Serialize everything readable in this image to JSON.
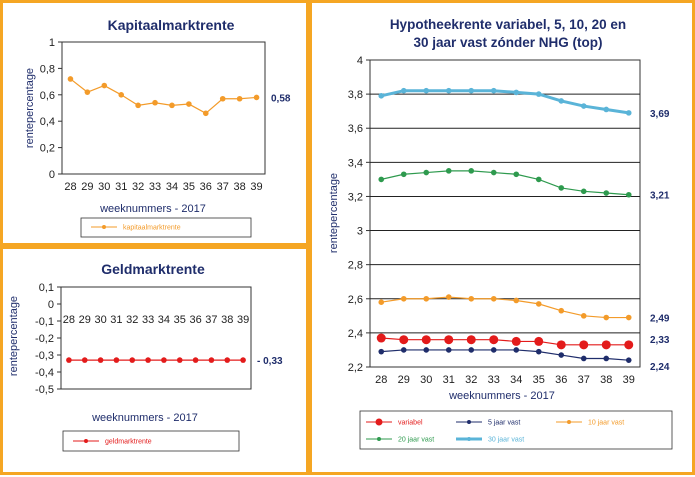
{
  "chart_data": [
    {
      "id": "kap",
      "type": "line",
      "title": "Kapitaalmarktrente",
      "xlabel": "weeknummers - 2017",
      "ylabel": "rentepercentage",
      "categories": [
        "28",
        "29",
        "30",
        "31",
        "32",
        "33",
        "34",
        "35",
        "36",
        "37",
        "38",
        "39"
      ],
      "ylim": [
        0,
        1
      ],
      "yticks": [
        "0",
        "0,2",
        "0,4",
        "0,6",
        "0,8",
        "1"
      ],
      "series": [
        {
          "name": "kapitaalmarktrente",
          "color": "#F39B2A",
          "marker": "circle",
          "values": [
            0.72,
            0.62,
            0.67,
            0.6,
            0.52,
            0.54,
            0.52,
            0.53,
            0.46,
            0.57,
            0.57,
            0.58
          ],
          "end_label": "0,58"
        }
      ],
      "grid": false,
      "legend_position": "bottom"
    },
    {
      "id": "geld",
      "type": "line",
      "title": "Geldmarktrente",
      "xlabel": "weeknummers - 2017",
      "ylabel": "rentepercentage",
      "categories": [
        "28",
        "29",
        "30",
        "31",
        "32",
        "33",
        "34",
        "35",
        "36",
        "37",
        "38",
        "39"
      ],
      "ylim": [
        -0.5,
        0.1
      ],
      "yticks": [
        "-0,5",
        "-0,4",
        "-0,3",
        "-0,2",
        "-0,1",
        "0",
        "0,1"
      ],
      "series": [
        {
          "name": "geldmarktrente",
          "color": "#E31B1B",
          "marker": "circle",
          "values": [
            -0.33,
            -0.33,
            -0.33,
            -0.33,
            -0.33,
            -0.33,
            -0.33,
            -0.33,
            -0.33,
            -0.33,
            -0.33,
            -0.33
          ],
          "end_label": "- 0,33"
        }
      ],
      "grid": false,
      "legend_position": "bottom"
    },
    {
      "id": "hyp",
      "type": "line",
      "title": "Hypotheekrente variabel, 5, 10, 20 en",
      "title_line2": "30 jaar vast zónder NHG (top)",
      "xlabel": "weeknummers - 2017",
      "ylabel": "rentepercentage",
      "categories": [
        "28",
        "29",
        "30",
        "31",
        "32",
        "33",
        "34",
        "35",
        "36",
        "37",
        "38",
        "39"
      ],
      "ylim": [
        2.2,
        4
      ],
      "yticks": [
        "2,2",
        "2,4",
        "2,6",
        "2,8",
        "3",
        "3,2",
        "3,4",
        "3,6",
        "3,8",
        "4"
      ],
      "series": [
        {
          "name": "variabel",
          "color": "#E31B1B",
          "marker": "circle-big",
          "values": [
            2.37,
            2.36,
            2.36,
            2.36,
            2.36,
            2.36,
            2.35,
            2.35,
            2.33,
            2.33,
            2.33,
            2.33
          ],
          "end_label": "2,33"
        },
        {
          "name": "5 jaar vast",
          "color": "#1F2D6B",
          "marker": "circle",
          "values": [
            2.29,
            2.3,
            2.3,
            2.3,
            2.3,
            2.3,
            2.3,
            2.29,
            2.27,
            2.25,
            2.25,
            2.24
          ],
          "end_label": "2,24"
        },
        {
          "name": "10 jaar vast",
          "color": "#F39B2A",
          "marker": "circle",
          "values": [
            2.58,
            2.6,
            2.6,
            2.61,
            2.6,
            2.6,
            2.59,
            2.57,
            2.53,
            2.5,
            2.49,
            2.49
          ],
          "end_label": "2,49"
        },
        {
          "name": "20 jaar vast",
          "color": "#2E9A4E",
          "marker": "circle",
          "values": [
            3.3,
            3.33,
            3.34,
            3.35,
            3.35,
            3.34,
            3.33,
            3.3,
            3.25,
            3.23,
            3.22,
            3.21
          ],
          "end_label": "3,21"
        },
        {
          "name": "30 jaar vast",
          "color": "#5AB4D8",
          "marker": "circle-thick",
          "values": [
            3.79,
            3.82,
            3.82,
            3.82,
            3.82,
            3.82,
            3.81,
            3.8,
            3.76,
            3.73,
            3.71,
            3.69
          ],
          "end_label": "3,69"
        }
      ],
      "grid": true,
      "legend_position": "bottom"
    }
  ]
}
